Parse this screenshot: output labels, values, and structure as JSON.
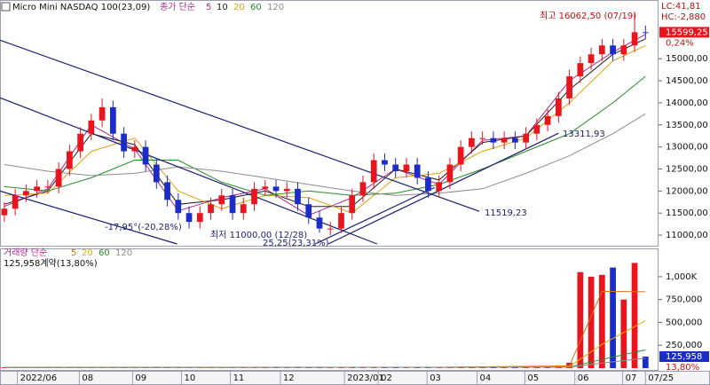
{
  "chart_data": [
    {
      "type": "candlestick",
      "title": "Micro Mini NASDAQ 100(23,09)",
      "legend_label": "종가 단순",
      "lc_label": "LC:41,81",
      "hc_label": "HC:-2,880",
      "up_color": "#e8141e",
      "down_color": "#1c2cc8",
      "xlim": [
        -0.4,
        60.2
      ],
      "ylim": [
        10800,
        16170
      ],
      "yticks": [
        {
          "value": 11000,
          "label": "11000,00"
        },
        {
          "value": 11500,
          "label": "11500,00"
        },
        {
          "value": 12000,
          "label": "12000,00"
        },
        {
          "value": 12500,
          "label": "12500,00"
        },
        {
          "value": 13000,
          "label": "13000,00"
        },
        {
          "value": 13500,
          "label": "13500,00"
        },
        {
          "value": 14000,
          "label": "14000,00"
        },
        {
          "value": 14500,
          "label": "14500,00"
        },
        {
          "value": 15000,
          "label": "15000,00"
        }
      ],
      "xticks": [
        {
          "value": 1.2,
          "label": "2022/06"
        },
        {
          "value": 6.9,
          "label": "08"
        },
        {
          "value": 11.8,
          "label": "09"
        },
        {
          "value": 16.3,
          "label": "10"
        },
        {
          "value": 20.8,
          "label": "11"
        },
        {
          "value": 25.4,
          "label": "12"
        },
        {
          "value": 31.3,
          "label": "2023/01"
        },
        {
          "value": 34.4,
          "label": "02"
        },
        {
          "value": 38.9,
          "label": "03"
        },
        {
          "value": 43.5,
          "label": "04"
        },
        {
          "value": 47.9,
          "label": "05"
        },
        {
          "value": 52.5,
          "label": "06"
        },
        {
          "value": 56.9,
          "label": "07"
        },
        {
          "value": 59,
          "label": "07/25"
        }
      ],
      "open": [
        11450,
        11600,
        11900,
        12000,
        12100,
        12100,
        12500,
        12900,
        13300,
        13600,
        13900,
        13300,
        12900,
        13000,
        12600,
        12200,
        11800,
        11500,
        11300,
        11500,
        11700,
        11900,
        11500,
        11700,
        12050,
        12100,
        12000,
        12050,
        11700,
        11400,
        11150,
        11150,
        11500,
        11900,
        12200,
        12700,
        12600,
        12450,
        12600,
        12300,
        12000,
        12200,
        12600,
        13000,
        13200,
        13200,
        13100,
        13200,
        13100,
        13300,
        13500,
        13700,
        14100,
        14600,
        14900,
        15100,
        15300,
        15100,
        15300,
        15600
      ],
      "high": [
        11750,
        12050,
        12150,
        12250,
        12250,
        12650,
        13050,
        13450,
        13750,
        14100,
        14050,
        13450,
        13150,
        13150,
        12750,
        12350,
        11950,
        11650,
        11650,
        11850,
        12050,
        12050,
        11850,
        12200,
        12250,
        12250,
        12200,
        12200,
        11850,
        11550,
        11300,
        11650,
        12050,
        12350,
        12850,
        12850,
        12750,
        12750,
        12750,
        12450,
        12350,
        12750,
        13150,
        13350,
        13350,
        13350,
        13350,
        13350,
        13450,
        13650,
        13850,
        14250,
        14750,
        15050,
        15250,
        15450,
        15450,
        15450,
        16062.5,
        15750
      ],
      "low": [
        11300,
        11450,
        11750,
        11850,
        11950,
        11950,
        12350,
        12750,
        13150,
        13450,
        13150,
        12750,
        12750,
        12450,
        12050,
        11650,
        11350,
        11150,
        11150,
        11350,
        11550,
        11350,
        11350,
        11550,
        11900,
        11850,
        11850,
        11550,
        11250,
        11050,
        11000,
        11050,
        11350,
        11750,
        12050,
        12450,
        12300,
        12300,
        12150,
        11850,
        11850,
        12050,
        12450,
        12850,
        13050,
        12950,
        12950,
        12950,
        12950,
        13150,
        13350,
        13550,
        13950,
        14450,
        14750,
        14950,
        14950,
        14950,
        15150,
        15450
      ],
      "close": [
        11600,
        11900,
        12000,
        12100,
        12100,
        12500,
        12900,
        13300,
        13600,
        13900,
        13300,
        12900,
        13000,
        12600,
        12200,
        11800,
        11500,
        11300,
        11500,
        11700,
        11900,
        11500,
        11700,
        12050,
        12100,
        12000,
        12050,
        11700,
        11400,
        11150,
        11150,
        11500,
        11900,
        12200,
        12700,
        12600,
        12450,
        12600,
        12300,
        12000,
        12200,
        12600,
        13000,
        13200,
        13200,
        13100,
        13200,
        13100,
        13300,
        13500,
        13700,
        14100,
        14600,
        14900,
        15100,
        15300,
        15100,
        15300,
        15600,
        15599.25
      ],
      "last_price": {
        "value": 15599.25,
        "label": "15599,25"
      },
      "change_label": "0,24%",
      "ma": {
        "x": [
          0,
          4,
          8,
          12,
          16,
          20,
          24,
          28,
          32,
          36,
          40,
          44,
          48,
          52,
          56,
          59
        ],
        "series": [
          {
            "name": "5",
            "color": "#b02890",
            "values": [
              11650,
              12050,
              13500,
              12950,
              11550,
              11850,
              12050,
              11450,
              11850,
              12500,
              12150,
              13150,
              13250,
              14500,
              15150,
              15550
            ]
          },
          {
            "name": "10",
            "color": "#202020",
            "values": [
              11700,
              12000,
              13300,
              13050,
              11700,
              11800,
              12000,
              11650,
              11650,
              12500,
              12250,
              13100,
              13250,
              14300,
              15100,
              15450
            ]
          },
          {
            "name": "20",
            "color": "#e0a010",
            "values": [
              11900,
              11950,
              12900,
              13200,
              12000,
              11600,
              11900,
              11850,
              11500,
              12300,
              12400,
              12900,
              13200,
              14000,
              14950,
              15300
            ]
          },
          {
            "name": "60",
            "color": "#2a8a2a",
            "values": [
              12100,
              12000,
              12300,
              12700,
              12700,
              12200,
              11900,
              12000,
              11900,
              11950,
              12150,
              12500,
              12900,
              13300,
              14000,
              14600
            ]
          },
          {
            "name": "120",
            "color": "#8c8c8c",
            "values": [
              12600,
              12450,
              12350,
              12400,
              12550,
              12450,
              12300,
              12150,
              12000,
              11900,
              11950,
              12050,
              12400,
              12800,
              13300,
              13750
            ]
          }
        ]
      },
      "trendlines": [
        {
          "color": "#1a1f6e",
          "points": [
            [
              -0.4,
              15420
            ],
            [
              43.7,
              11540
            ]
          ]
        },
        {
          "color": "#1a1f6e",
          "points": [
            [
              -0.4,
              14115
            ],
            [
              34.3,
              10800
            ]
          ]
        },
        {
          "color": "#1a1f6e",
          "points": [
            [
              -0.4,
              12000
            ],
            [
              15.9,
              10800
            ]
          ]
        },
        {
          "color": "#1a1f6e",
          "points": [
            [
              29.8,
              10800
            ],
            [
              51,
              13310
            ]
          ]
        },
        {
          "color": "#1a1f6e",
          "points": [
            [
              28.6,
              10800
            ],
            [
              39.6,
              12080
            ]
          ]
        }
      ],
      "annotations": [
        {
          "text": "최고 16062,50 (07/19)",
          "color": "#c01010"
        },
        {
          "text": "-17,95°(-20,28%)",
          "color": "#1a1f6e"
        },
        {
          "text": "최저 11000,00 (12/28)",
          "color": "#1a1f6e"
        },
        {
          "text": "25,25(23,31%)",
          "color": "#1a1f6e"
        },
        {
          "text": "11519,23",
          "color": "#1a1f6e"
        },
        {
          "text": "13311,93",
          "color": "#1a1f6e"
        }
      ]
    },
    {
      "type": "bar",
      "legend_label": "거래량 단순",
      "info": "125,958계약(13,80%)",
      "ylim": [
        0,
        1290000
      ],
      "yticks": [
        {
          "value": 250000,
          "label": "250,000"
        },
        {
          "value": 500000,
          "label": "500,000"
        },
        {
          "value": 750000,
          "label": "750,000"
        },
        {
          "value": 1000000,
          "label": "1,000K"
        }
      ],
      "values": [
        9000,
        7000,
        8000,
        6000,
        10000,
        8000,
        7000,
        9000,
        8000,
        11000,
        9000,
        8000,
        7000,
        10000,
        9000,
        8000,
        12000,
        9000,
        8000,
        7000,
        10000,
        11000,
        9000,
        8000,
        7000,
        9000,
        10000,
        12000,
        8000,
        9000,
        7000,
        10000,
        9000,
        11000,
        8000,
        10000,
        9000,
        8000,
        12000,
        10000,
        9000,
        8000,
        10000,
        11000,
        9000,
        12000,
        14000,
        13000,
        15000,
        18000,
        20000,
        30000,
        60000,
        1050000,
        1000000,
        1020000,
        1100000,
        750000,
        1150000,
        125958
      ],
      "last_value": {
        "value": 125958,
        "label": "125,958"
      },
      "change_label": "13,80%",
      "ma": {
        "x": [
          0,
          20,
          40,
          52,
          55,
          59
        ],
        "series": [
          {
            "name": "5",
            "color": "#e07010",
            "values": [
              8400,
              9000,
              9800,
              25000,
              840000,
              835000
            ]
          },
          {
            "name": "20",
            "color": "#e0b000",
            "values": [
              8500,
              9000,
              10000,
              17000,
              260000,
              520000
            ]
          },
          {
            "name": "60",
            "color": "#2a8a2a",
            "values": [
              8000,
              9000,
              9500,
              12000,
              95000,
              200000
            ]
          },
          {
            "name": "120",
            "color": "#8c8c8c",
            "values": [
              8000,
              8500,
              9000,
              10500,
              55000,
              110000
            ]
          }
        ]
      }
    }
  ]
}
